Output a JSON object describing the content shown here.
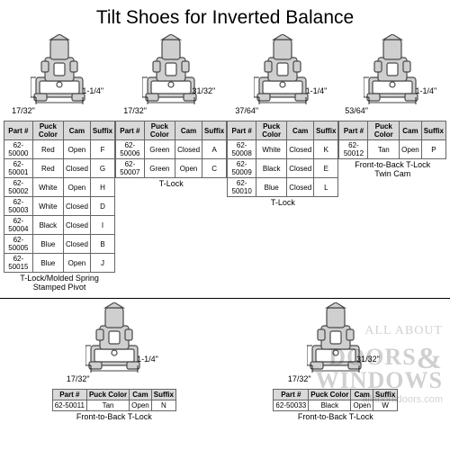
{
  "title": "Tilt Shoes for Inverted Balance",
  "columns": [
    "Part #",
    "Puck Color",
    "Cam",
    "Suffix"
  ],
  "shoe_fill": "#cfcfcf",
  "shoe_stroke": "#4a4a4a",
  "table_header_bg": "#d9d9d9",
  "table_border": "#666666",
  "watermark": {
    "line1": "ALL ABOUT",
    "line2a": "DOORS",
    "amp": "&",
    "line2b": "WINDOWS",
    "url": "allaboutdoors.com"
  },
  "variants": [
    {
      "label": "T-Lock/Molded Spring\nStamped Pivot",
      "dim_v": "17/32\"",
      "dim_h": "1-1/4\"",
      "rows": [
        [
          "62-50000",
          "Red",
          "Open",
          "F"
        ],
        [
          "62-50001",
          "Red",
          "Closed",
          "G"
        ],
        [
          "62-50002",
          "White",
          "Open",
          "H"
        ],
        [
          "62-50003",
          "White",
          "Closed",
          "D"
        ],
        [
          "62-50004",
          "Black",
          "Closed",
          "I"
        ],
        [
          "62-50005",
          "Blue",
          "Closed",
          "B"
        ],
        [
          "62-50015",
          "Blue",
          "Open",
          "J"
        ]
      ]
    },
    {
      "label": "T-Lock",
      "dim_v": "17/32\"",
      "dim_h": "31/32\"",
      "rows": [
        [
          "62-50006",
          "Green",
          "Closed",
          "A"
        ],
        [
          "62-50007",
          "Green",
          "Open",
          "C"
        ]
      ]
    },
    {
      "label": "T-Lock",
      "dim_v": "37/64\"",
      "dim_h": "1-1/4\"",
      "rows": [
        [
          "62-50008",
          "White",
          "Closed",
          "K"
        ],
        [
          "62-50009",
          "Black",
          "Closed",
          "E"
        ],
        [
          "62-50010",
          "Blue",
          "Closed",
          "L"
        ]
      ]
    },
    {
      "label": "Front-to-Back T-Lock\nTwin Cam",
      "dim_v": "53/64\"",
      "dim_h": "1-1/4\"",
      "rows": [
        [
          "62-50012",
          "Tan",
          "Open",
          "P"
        ]
      ]
    },
    {
      "label": "Front-to-Back T-Lock",
      "dim_v": "17/32\"",
      "dim_h": "1-1/4\"",
      "rows": [
        [
          "62-50011",
          "Tan",
          "Open",
          "N"
        ]
      ]
    },
    {
      "label": "Front-to-Back T-Lock",
      "dim_v": "17/32\"",
      "dim_h": "31/32\"",
      "rows": [
        [
          "62-50033",
          "Black",
          "Open",
          "W"
        ]
      ]
    }
  ]
}
